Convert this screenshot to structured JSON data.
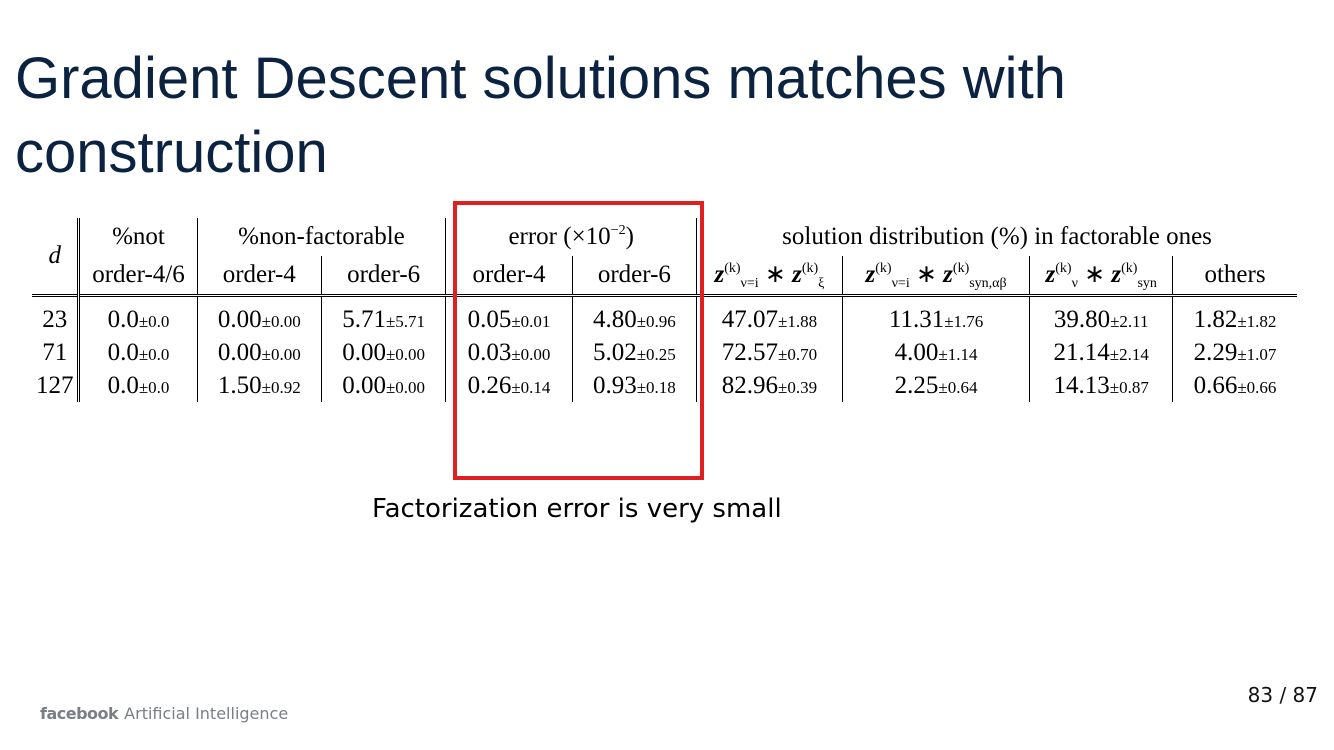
{
  "slide": {
    "title": "Gradient Descent solutions matches with construction",
    "caption": "Factorization error is very small",
    "page_number": "83 / 87",
    "footer_brand": "facebook",
    "footer_text": "Artificial Intelligence"
  },
  "table": {
    "col_d": "d",
    "group_not": "%not",
    "group_nonfact": "%non-factorable",
    "group_error": "error (×10",
    "group_error_exp": "−2",
    "group_error_close": ")",
    "group_solution": "solution distribution (%) in factorable ones",
    "sub_not": "order-4/6",
    "sub_nf4": "order-4",
    "sub_nf6": "order-6",
    "sub_err4": "order-4",
    "sub_err6": "order-6",
    "sub_sol1_main": "z",
    "sub_sol1_sup": "(k)",
    "sub_sol1_sub": "ν=i",
    "sub_sol1_op": "∗",
    "sub_sol1_main2": "z",
    "sub_sol1_sup2": "(k)",
    "sub_sol1_sub2": "ξ",
    "sub_sol2_main": "z",
    "sub_sol2_sup": "(k)",
    "sub_sol2_sub": "ν=i",
    "sub_sol2_op": "∗",
    "sub_sol2_main2": "z",
    "sub_sol2_sup2": "(k)",
    "sub_sol2_sub2": "syn,αβ",
    "sub_sol3_main": "z",
    "sub_sol3_sup": "(k)",
    "sub_sol3_sub": "ν",
    "sub_sol3_op": "∗",
    "sub_sol3_main2": "z",
    "sub_sol3_sup2": "(k)",
    "sub_sol3_sub2": "syn",
    "sub_others": "others",
    "rows": [
      {
        "d": "23",
        "not": "0.0",
        "not_sd": "±0.0",
        "nf4": "0.00",
        "nf4_sd": "±0.00",
        "nf6": "5.71",
        "nf6_sd": "±5.71",
        "err4": "0.05",
        "err4_sd": "±0.01",
        "err6": "4.80",
        "err6_sd": "±0.96",
        "s1": "47.07",
        "s1_sd": "±1.88",
        "s2": "11.31",
        "s2_sd": "±1.76",
        "s3": "39.80",
        "s3_sd": "±2.11",
        "oth": "1.82",
        "oth_sd": "±1.82"
      },
      {
        "d": "71",
        "not": "0.0",
        "not_sd": "±0.0",
        "nf4": "0.00",
        "nf4_sd": "±0.00",
        "nf6": "0.00",
        "nf6_sd": "±0.00",
        "err4": "0.03",
        "err4_sd": "±0.00",
        "err6": "5.02",
        "err6_sd": "±0.25",
        "s1": "72.57",
        "s1_sd": "±0.70",
        "s2": "4.00",
        "s2_sd": "±1.14",
        "s3": "21.14",
        "s3_sd": "±2.14",
        "oth": "2.29",
        "oth_sd": "±1.07"
      },
      {
        "d": "127",
        "not": "0.0",
        "not_sd": "±0.0",
        "nf4": "1.50",
        "nf4_sd": "±0.92",
        "nf6": "0.00",
        "nf6_sd": "±0.00",
        "err4": "0.26",
        "err4_sd": "±0.14",
        "err6": "0.93",
        "err6_sd": "±0.18",
        "s1": "82.96",
        "s1_sd": "±0.39",
        "s2": "2.25",
        "s2_sd": "±0.64",
        "s3": "14.13",
        "s3_sd": "±0.87",
        "oth": "0.66",
        "oth_sd": "±0.66"
      }
    ]
  },
  "colors": {
    "title": "#0b2340",
    "highlight_box": "#e02020"
  }
}
